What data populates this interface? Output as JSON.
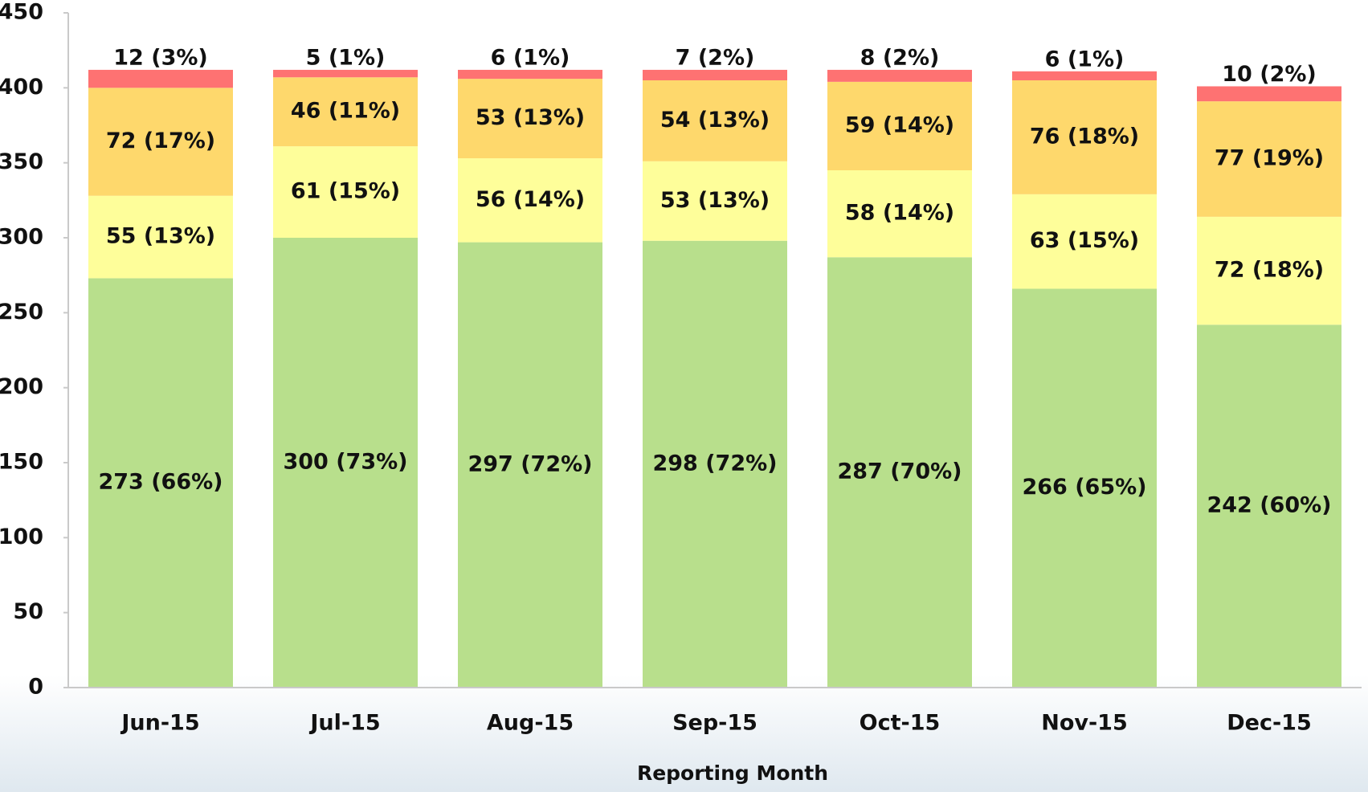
{
  "chart_data": {
    "type": "stacked_bar",
    "x_label": "Reporting Month",
    "categories": [
      "Jun-15",
      "Jul-15",
      "Aug-15",
      "Sep-15",
      "Oct-15",
      "Nov-15",
      "Dec-15"
    ],
    "series": [
      {
        "color": "#b8df8c",
        "values": [
          273,
          300,
          297,
          298,
          287,
          266,
          242
        ],
        "value_labels": [
          "273 (66%)",
          "300 (73%)",
          "297 (72%)",
          "298 (72%)",
          "287 (70%)",
          "266 (65%)",
          "242 (60%)"
        ]
      },
      {
        "color": "#fefe9a",
        "values": [
          55,
          61,
          56,
          53,
          58,
          63,
          72
        ],
        "value_labels": [
          "55 (13%)",
          "61 (15%)",
          "56 (14%)",
          "53 (13%)",
          "58 (14%)",
          "63 (15%)",
          "72 (18%)"
        ]
      },
      {
        "color": "#fed86c",
        "values": [
          72,
          46,
          53,
          54,
          59,
          76,
          77
        ],
        "value_labels": [
          "72 (17%)",
          "46 (11%)",
          "53 (13%)",
          "54 (13%)",
          "59 (14%)",
          "76 (18%)",
          "77 (19%)"
        ]
      },
      {
        "color": "#fe7272",
        "values": [
          12,
          5,
          6,
          7,
          8,
          6,
          10
        ],
        "value_labels": [
          "12 (3%)",
          "5 (1%)",
          "6 (1%)",
          "7 (2%)",
          "8 (2%)",
          "6 (1%)",
          "10 (2%)"
        ]
      }
    ],
    "ylim": [
      0,
      450
    ],
    "yticks": [
      0,
      50,
      100,
      150,
      200,
      250,
      300,
      350,
      400,
      450
    ],
    "grid": false
  }
}
